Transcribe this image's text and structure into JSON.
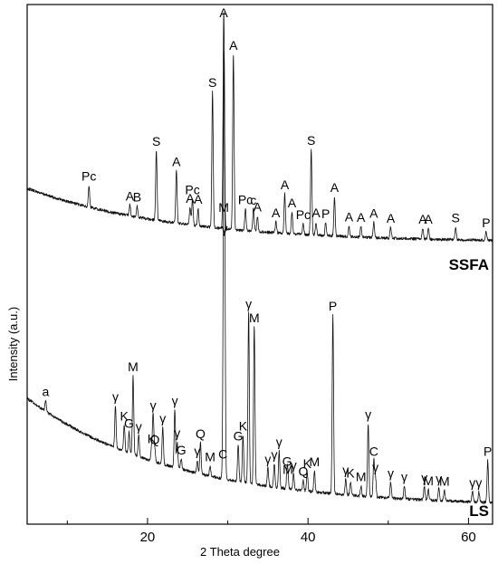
{
  "chart_data": {
    "type": "line",
    "xlabel": "2 Theta degree",
    "ylabel": "Intensity (a.u.)",
    "xlim": [
      5,
      63
    ],
    "x_ticks": [
      20,
      40,
      60
    ],
    "x_minor_ticks": [
      10,
      30,
      50
    ],
    "grid": false,
    "y_ticks_shown": false,
    "series": [
      {
        "name": "SSFA",
        "baseline_start": 0.62,
        "baseline_end": 0.14,
        "peaks": [
          {
            "label": "Pc",
            "x": 12.7,
            "height": 0.1
          },
          {
            "label": "A",
            "x": 17.8,
            "height": 0.05
          },
          {
            "label": "B",
            "x": 18.7,
            "height": 0.05
          },
          {
            "label": "S",
            "x": 21.1,
            "height": 0.32
          },
          {
            "label": "A",
            "x": 23.6,
            "height": 0.24
          },
          {
            "label": "A",
            "x": 25.3,
            "height": 0.08
          },
          {
            "label": "Pc",
            "x": 25.6,
            "height": 0.12
          },
          {
            "label": "A",
            "x": 26.3,
            "height": 0.08
          },
          {
            "label": "S",
            "x": 28.1,
            "height": 0.62
          },
          {
            "label": "A",
            "x": 29.5,
            "height": 1.0
          },
          {
            "label": "A",
            "x": 30.7,
            "height": 0.8
          },
          {
            "label": "Pc",
            "x": 32.2,
            "height": 0.1
          },
          {
            "label": "c",
            "x": 33.2,
            "height": 0.1
          },
          {
            "label": "A",
            "x": 33.7,
            "height": 0.07
          },
          {
            "label": "A",
            "x": 36.0,
            "height": 0.05
          },
          {
            "label": "A",
            "x": 37.1,
            "height": 0.18
          },
          {
            "label": "A",
            "x": 38.0,
            "height": 0.1
          },
          {
            "label": "Pc",
            "x": 39.4,
            "height": 0.05
          },
          {
            "label": "S",
            "x": 40.4,
            "height": 0.39
          },
          {
            "label": "A",
            "x": 41.0,
            "height": 0.06
          },
          {
            "label": "P",
            "x": 42.2,
            "height": 0.06
          },
          {
            "label": "A",
            "x": 43.3,
            "height": 0.18
          },
          {
            "label": "A",
            "x": 45.1,
            "height": 0.05
          },
          {
            "label": "A",
            "x": 46.6,
            "height": 0.05
          },
          {
            "label": "A",
            "x": 48.2,
            "height": 0.07
          },
          {
            "label": "A",
            "x": 50.3,
            "height": 0.05
          },
          {
            "label": "A",
            "x": 54.3,
            "height": 0.05
          },
          {
            "label": "A",
            "x": 55.0,
            "height": 0.05
          },
          {
            "label": "S",
            "x": 58.4,
            "height": 0.06
          },
          {
            "label": "P",
            "x": 62.2,
            "height": 0.04
          }
        ]
      },
      {
        "name": "LS",
        "baseline_start": 0.42,
        "baseline_end": 0.05,
        "peaks": [
          {
            "label": "a",
            "x": 7.3,
            "height": 0.04
          },
          {
            "label": "γ",
            "x": 16.0,
            "height": 0.16
          },
          {
            "label": "K",
            "x": 17.1,
            "height": 0.1
          },
          {
            "label": "G",
            "x": 17.7,
            "height": 0.08
          },
          {
            "label": "M",
            "x": 18.2,
            "height": 0.3
          },
          {
            "label": "γ",
            "x": 18.9,
            "height": 0.08
          },
          {
            "label": "γ",
            "x": 20.7,
            "height": 0.18
          },
          {
            "label": "K",
            "x": 20.5,
            "height": 0.05
          },
          {
            "label": "Q",
            "x": 20.9,
            "height": 0.05
          },
          {
            "label": "γ",
            "x": 21.9,
            "height": 0.14
          },
          {
            "label": "γ",
            "x": 23.4,
            "height": 0.22
          },
          {
            "label": "γ",
            "x": 23.7,
            "height": 0.1
          },
          {
            "label": "G",
            "x": 24.2,
            "height": 0.04
          },
          {
            "label": "Q",
            "x": 26.6,
            "height": 0.12
          },
          {
            "label": "γ",
            "x": 26.2,
            "height": 0.05
          },
          {
            "label": "M",
            "x": 27.8,
            "height": 0.04
          },
          {
            "label": "C",
            "x": 29.4,
            "height": 0.06
          },
          {
            "label": "M",
            "x": 29.5,
            "height": 1.0
          },
          {
            "label": "γ",
            "x": 29.6,
            "height": 0.92
          },
          {
            "label": "G",
            "x": 31.3,
            "height": 0.14
          },
          {
            "label": "K",
            "x": 31.9,
            "height": 0.18
          },
          {
            "label": "γ",
            "x": 32.6,
            "height": 0.65
          },
          {
            "label": "M",
            "x": 33.3,
            "height": 0.6
          },
          {
            "label": "γ",
            "x": 35.0,
            "height": 0.07
          },
          {
            "label": "γ",
            "x": 35.8,
            "height": 0.09
          },
          {
            "label": "γ",
            "x": 36.4,
            "height": 0.14
          },
          {
            "label": "G",
            "x": 37.4,
            "height": 0.07
          },
          {
            "label": "M",
            "x": 37.5,
            "height": 0.04
          },
          {
            "label": "γ",
            "x": 38.2,
            "height": 0.06
          },
          {
            "label": "Q",
            "x": 39.4,
            "height": 0.04
          },
          {
            "label": "K",
            "x": 39.9,
            "height": 0.07
          },
          {
            "label": "M",
            "x": 40.8,
            "height": 0.08
          },
          {
            "label": "P",
            "x": 43.1,
            "height": 0.68
          },
          {
            "label": "γ",
            "x": 44.7,
            "height": 0.06
          },
          {
            "label": "K",
            "x": 45.3,
            "height": 0.05
          },
          {
            "label": "M",
            "x": 46.6,
            "height": 0.04
          },
          {
            "label": "γ",
            "x": 47.5,
            "height": 0.28
          },
          {
            "label": "C",
            "x": 48.2,
            "height": 0.14
          },
          {
            "label": "γ",
            "x": 48.4,
            "height": 0.08
          },
          {
            "label": "γ",
            "x": 50.3,
            "height": 0.06
          },
          {
            "label": "γ",
            "x": 52.0,
            "height": 0.05
          },
          {
            "label": "γ",
            "x": 54.5,
            "height": 0.05
          },
          {
            "label": "M",
            "x": 55.0,
            "height": 0.04
          },
          {
            "label": "γ",
            "x": 56.3,
            "height": 0.05
          },
          {
            "label": "M",
            "x": 57.0,
            "height": 0.04
          },
          {
            "label": "γ",
            "x": 60.5,
            "height": 0.04
          },
          {
            "label": "γ",
            "x": 61.3,
            "height": 0.04
          },
          {
            "label": "P",
            "x": 62.4,
            "height": 0.16
          }
        ]
      }
    ]
  }
}
